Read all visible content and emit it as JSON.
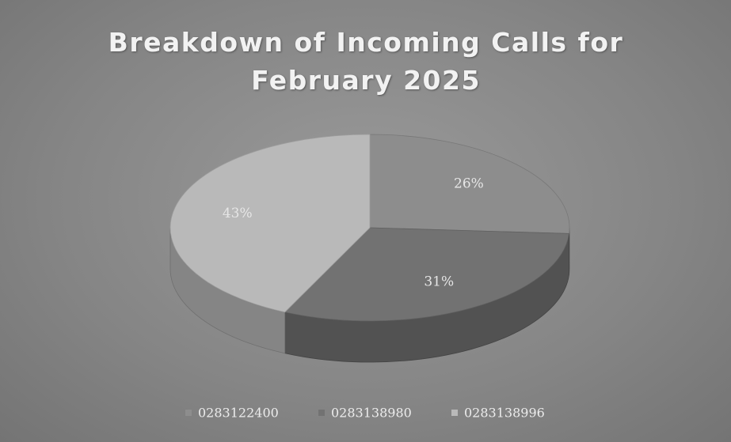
{
  "chart_data": {
    "type": "pie",
    "title": "Breakdown of Incoming Calls for February 2025",
    "categories": [
      "0283122400",
      "0283138980",
      "0283138996"
    ],
    "values": [
      26,
      31,
      43
    ],
    "value_labels": [
      "26%",
      "31%",
      "43%"
    ],
    "colors": [
      "#8d8d8d",
      "#727272",
      "#b9b9b9"
    ],
    "legend": "bottom"
  }
}
